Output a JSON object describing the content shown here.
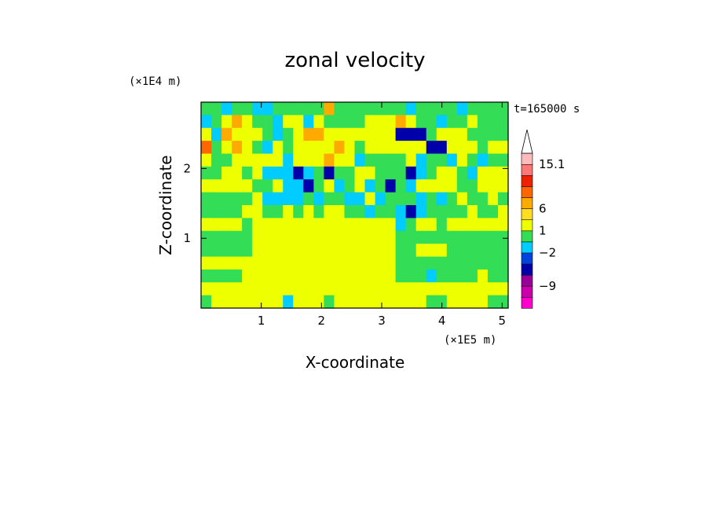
{
  "chart_data": {
    "type": "heatmap",
    "title": "zonal velocity",
    "xlabel": "X-coordinate",
    "ylabel": "Z-coordinate",
    "x_scale_label": "(×1E5 m)",
    "y_scale_label": "(×1E4 m)",
    "time_label": "t=165000 s",
    "xlim": [
      0,
      5.1
    ],
    "ylim": [
      0,
      2.95
    ],
    "x_ticks": [
      "1",
      "2",
      "3",
      "4",
      "5"
    ],
    "y_ticks": [
      "1",
      "2"
    ],
    "colorbar": {
      "tick_labels": [
        "15.1",
        "6",
        "1",
        "−2",
        "−9"
      ],
      "levels": [
        {
          "color": "#ff00cc"
        },
        {
          "color": "#cc00aa"
        },
        {
          "color": "#990099"
        },
        {
          "color": "#0000aa"
        },
        {
          "color": "#0044dd"
        },
        {
          "color": "#00ccff"
        },
        {
          "color": "#33dd55"
        },
        {
          "color": "#eeff00"
        },
        {
          "color": "#ffdd22"
        },
        {
          "color": "#ffaa00"
        },
        {
          "color": "#ff6600"
        },
        {
          "color": "#ee2200"
        },
        {
          "color": "#ff7777"
        },
        {
          "color": "#ffbbbb"
        }
      ]
    },
    "field": [
      "GGCGGCCGGGGGOGGGGGGGCGGGGCGGGG",
      "CGYOYGGCYYCYGGGGYYYOYGGCGGYGGG",
      "YCOYYYGCGYOOYYYYYYYBBBGYYYGGGG",
      "RGYOYGCYGYYYYOYGYYYYYYBBYYYGYY",
      "YGGYYYYYCYYYOYYCGGGGYCGGCYGCGG",
      "GGYYGYCCCBCGBGGYYGGGBCGYYGCYYY",
      "YYYYYGGYCCBGYCGYCGBGCYYYYGGYYY",
      "GGGGGYCCCCGCGGCCYCGGGCGCGYGGYG",
      "GGGGYYGGYGYGYYGGCGGCBCGGGGYGGY",
      "YYYYGYYYYYYYYYYYYYYCGYYGYYYYYY",
      "GGGGGYYYYYYYYYYYYYYGGGGGGGGGGG",
      "GGGGGYYYYYYYYYYYYYYGGYYYGGGGGG",
      "YYYYYYYYYYYYYYYYYYYGGGGGGGGGGG",
      "GGGGYYYYYYYYYYYYYYYGGGCGGGGYGG",
      "YYYYYYYYYYYYYYYYYYYYYYYYYYYYYY",
      "GYYYYYYYCYYYGYYYYYYYYYGGYYYYGG"
    ],
    "field_key": {
      "G": "#33dd55",
      "Y": "#eeff00",
      "O": "#ffaa00",
      "R": "#ff6600",
      "C": "#00ccff",
      "B": "#0000aa"
    }
  }
}
